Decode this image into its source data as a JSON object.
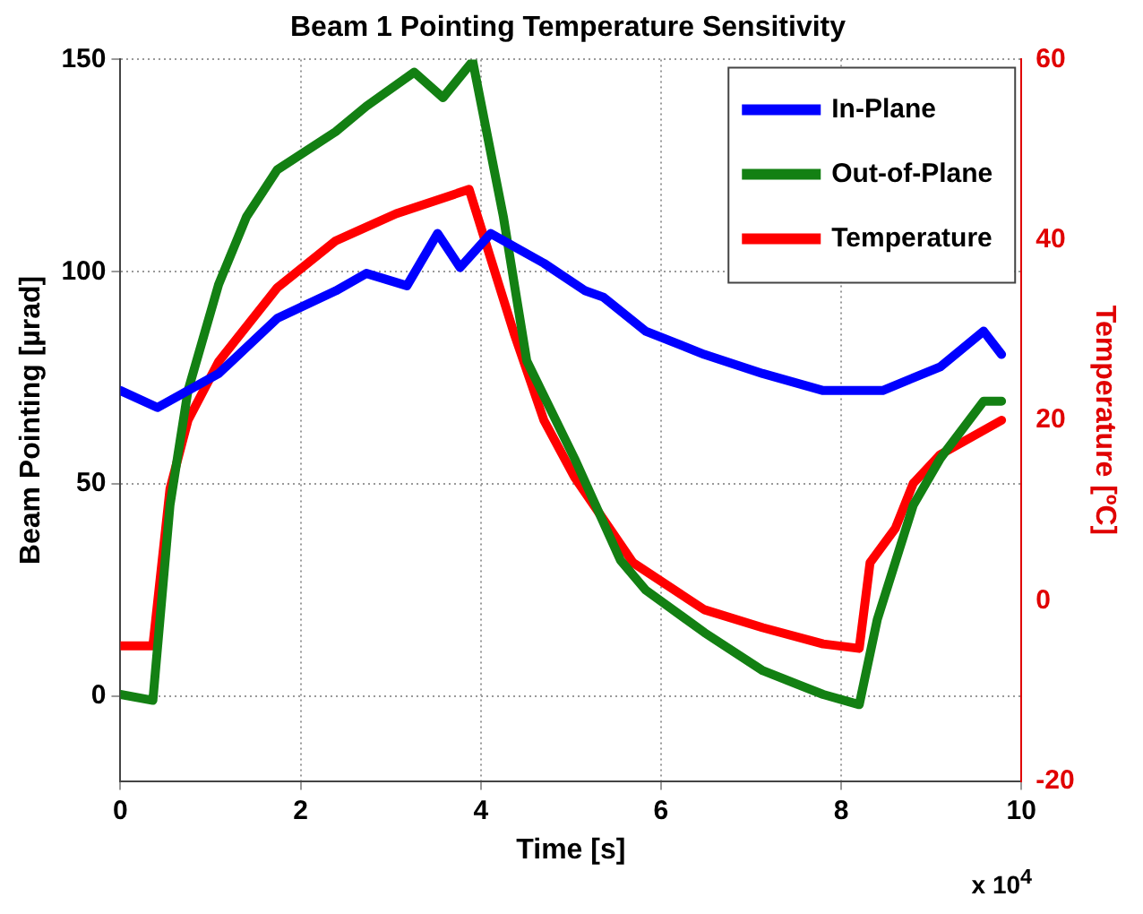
{
  "chart_data": {
    "type": "line",
    "title": "Beam 1 Pointing Temperature Sensitivity",
    "xlabel": "Time [s]",
    "ylabel": "Beam Pointing [µrad]",
    "y2label": "Temperature [ºC]",
    "annotations": [
      "x 10$^{4}$"
    ],
    "xlim": [
      0,
      10
    ],
    "xticks": [
      0,
      2,
      4,
      6,
      8,
      10
    ],
    "ylim": [
      -20,
      150
    ],
    "yticks": [
      0,
      50,
      100,
      150
    ],
    "y2lim": [
      -20,
      60
    ],
    "y2ticks": [
      -20,
      0,
      20,
      40,
      60
    ],
    "grid": true,
    "legend": "top right",
    "marker": "none",
    "line_style": "solid",
    "series": [
      {
        "name": "In-Plane",
        "color": "#0000ff",
        "x": [
          0,
          0.41,
          1.09,
          1.74,
          2.39,
          2.73,
          3.18,
          3.52,
          3.77,
          4.11,
          4.7,
          5.16,
          5.36,
          5.83,
          6.48,
          7.13,
          7.8,
          8.46,
          9.1,
          9.58,
          9.78
        ],
        "values": [
          72,
          68,
          76,
          89,
          95.5,
          99.6,
          96.7,
          109,
          101,
          109,
          102,
          95.5,
          94,
          86,
          80.5,
          76,
          72,
          72,
          77.6,
          86,
          80.5
        ]
      },
      {
        "name": "Out-of-Plane",
        "color": "#138013",
        "x": [
          0,
          0.36,
          0.55,
          0.75,
          1.09,
          1.4,
          1.74,
          2.39,
          2.73,
          3.26,
          3.58,
          3.91,
          4.25,
          4.51,
          5.04,
          5.55,
          5.83,
          6.48,
          7.13,
          7.8,
          8.2,
          8.4,
          8.8,
          9.1,
          9.58,
          9.78
        ],
        "values": [
          0.4,
          -1,
          45,
          72,
          97,
          113,
          124,
          133,
          139,
          147,
          141,
          149.6,
          113,
          79,
          56,
          32,
          25,
          15,
          6,
          0.4,
          -2,
          18,
          45,
          56,
          69.5,
          69.5
        ]
      },
      {
        "name": "Temperature",
        "color": "#ff0000",
        "axis": "y2",
        "x": [
          0,
          0.36,
          0.55,
          0.75,
          1.09,
          1.74,
          2.39,
          3.06,
          3.87,
          4.37,
          4.7,
          5.04,
          5.69,
          6.48,
          7.13,
          7.8,
          8.2,
          8.32,
          8.6,
          8.8,
          9.1,
          9.78
        ],
        "values": [
          -5,
          -5,
          12.4,
          20,
          26.5,
          34.7,
          39.9,
          42.9,
          45.6,
          29.6,
          20,
          13.7,
          4.2,
          -1,
          -3,
          -4.8,
          -5.3,
          4.2,
          8,
          13,
          16.2,
          20
        ]
      }
    ]
  }
}
